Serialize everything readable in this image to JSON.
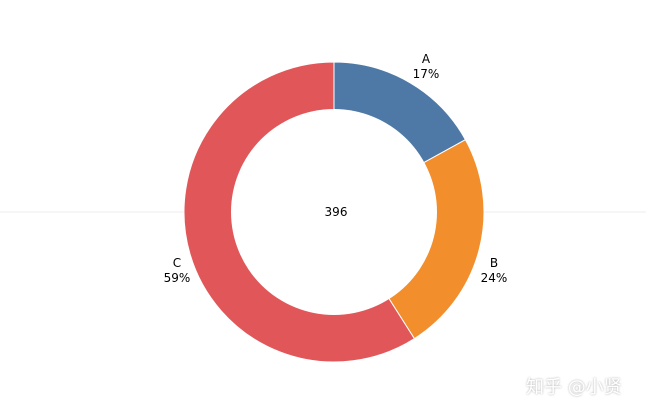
{
  "chart_data": {
    "type": "pie",
    "donut": true,
    "total_label": "396",
    "slices": [
      {
        "name": "A",
        "percent_label": "17%",
        "share": 0.17,
        "color": "#4e79a7"
      },
      {
        "name": "B",
        "percent_label": "24%",
        "share": 0.24,
        "color": "#f28e2b"
      },
      {
        "name": "C",
        "percent_label": "59%",
        "share": 0.59,
        "color": "#e15759"
      }
    ],
    "legend": "none",
    "grid": false
  },
  "watermark": "知乎 @小贤",
  "colors": {
    "background": "#ffffff",
    "center_hole": "#ffffff",
    "midline": "#eeeeee"
  }
}
